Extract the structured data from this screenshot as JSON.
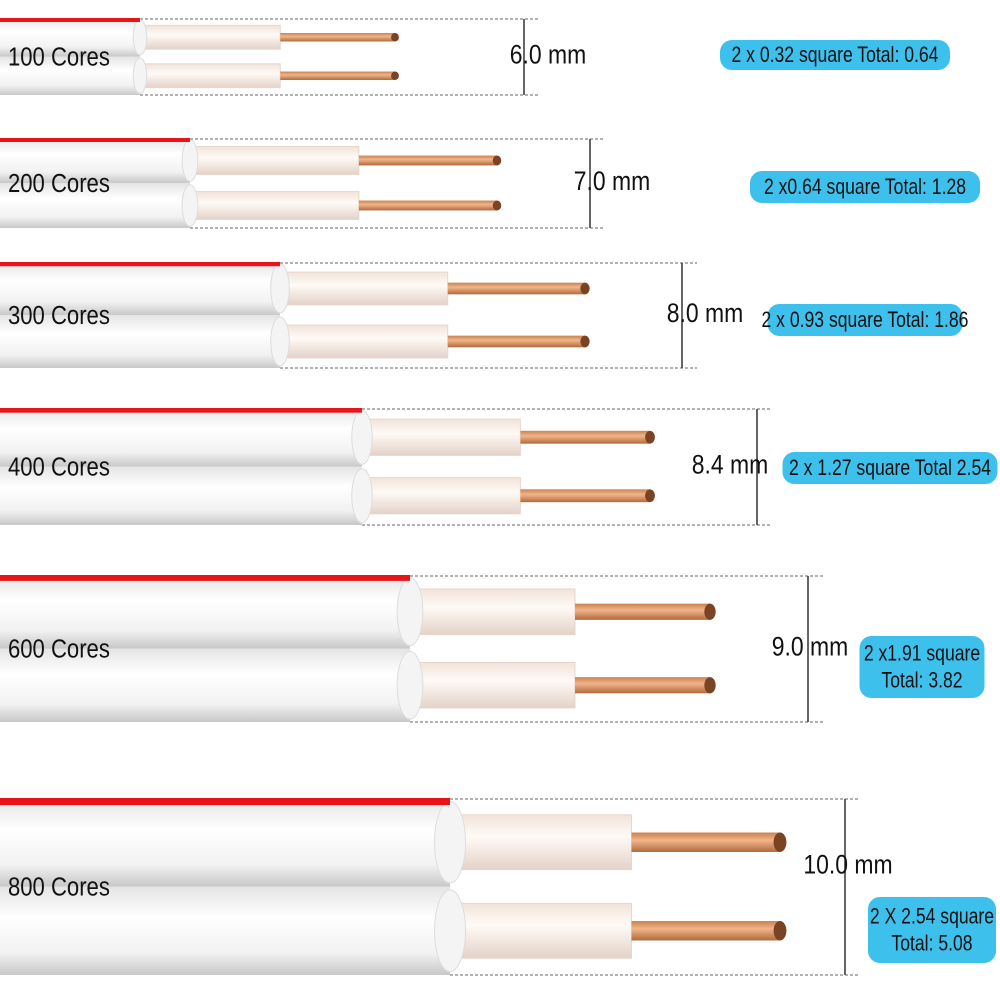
{
  "rows": [
    {
      "label": "100 Cores",
      "diameter": "6.0 mm",
      "spec": [
        "2 x 0.32 square  Total: 0.64"
      ]
    },
    {
      "label": "200 Cores",
      "diameter": "7.0 mm",
      "spec": [
        "2 x0.64 square  Total: 1.28"
      ]
    },
    {
      "label": "300 Cores",
      "diameter": "8.0 mm",
      "spec": [
        "2 x 0.93 square Total: 1.86"
      ]
    },
    {
      "label": "400 Cores",
      "diameter": "8.4 mm",
      "spec": [
        "2 x 1.27 square Total 2.54"
      ]
    },
    {
      "label": "600 Cores",
      "diameter": "9.0 mm",
      "spec": [
        "2 x1.91 square",
        "Total: 3.82"
      ]
    },
    {
      "label": "800 Cores",
      "diameter": "10.0 mm",
      "spec": [
        "2 X 2.54 square",
        "Total: 5.08"
      ]
    }
  ]
}
